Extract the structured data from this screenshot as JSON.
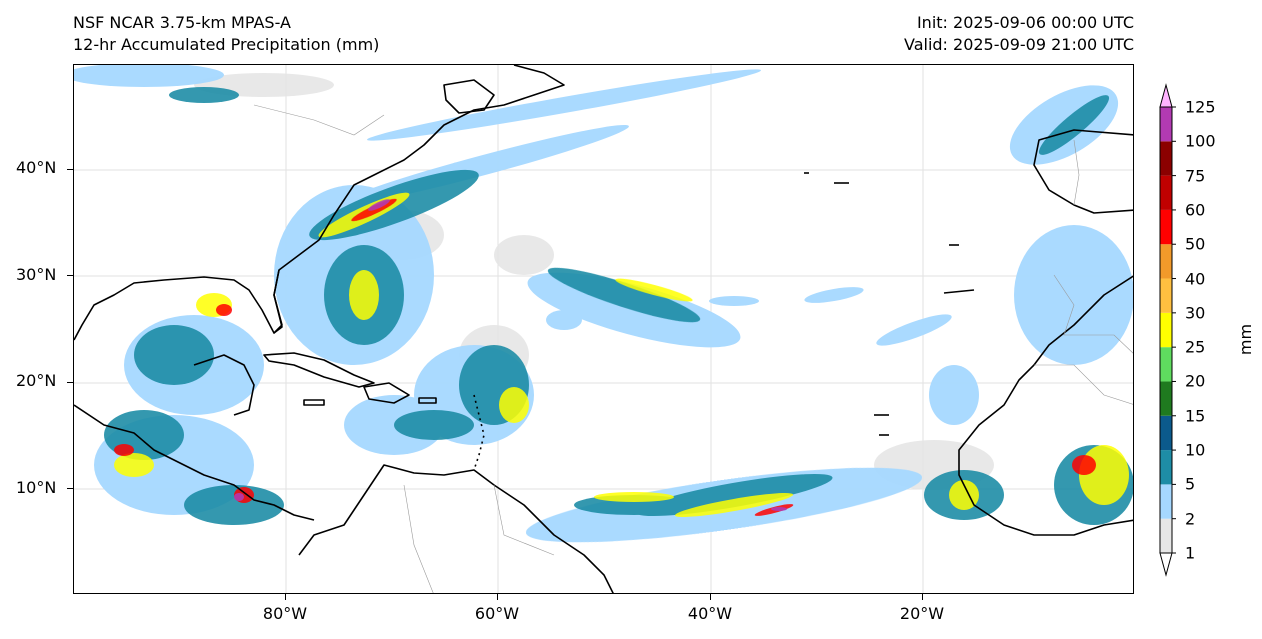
{
  "header": {
    "title_line1": "NSF NCAR 3.75-km MPAS-A",
    "title_line2": "12-hr Accumulated Precipitation (mm)",
    "init": "Init: 2025-09-06 00:00 UTC",
    "valid": "Valid: 2025-09-09 21:00 UTC"
  },
  "axes": {
    "lat_labels": [
      "40°N",
      "30°N",
      "20°N",
      "10°N"
    ],
    "lon_labels": [
      "80°W",
      "60°W",
      "40°W",
      "20°W"
    ]
  },
  "colorbar": {
    "unit": "mm",
    "levels": [
      "1",
      "2",
      "5",
      "10",
      "15",
      "20",
      "25",
      "30",
      "40",
      "50",
      "60",
      "75",
      "100",
      "125"
    ],
    "colors": [
      "#e6e6e6",
      "#a6d8ff",
      "#1e8da6",
      "#0b5a8c",
      "#1f7a1f",
      "#5fdc5f",
      "#ffff00",
      "#ffc040",
      "#f29a2a",
      "#ff0000",
      "#c00000",
      "#8b0000",
      "#b23ab2",
      "#ffb4ff"
    ]
  },
  "map": {
    "colors": {
      "ocean": "#ffffff",
      "coast": "#000000",
      "border": "#9a9a9a",
      "grid": "#dddddd"
    }
  }
}
